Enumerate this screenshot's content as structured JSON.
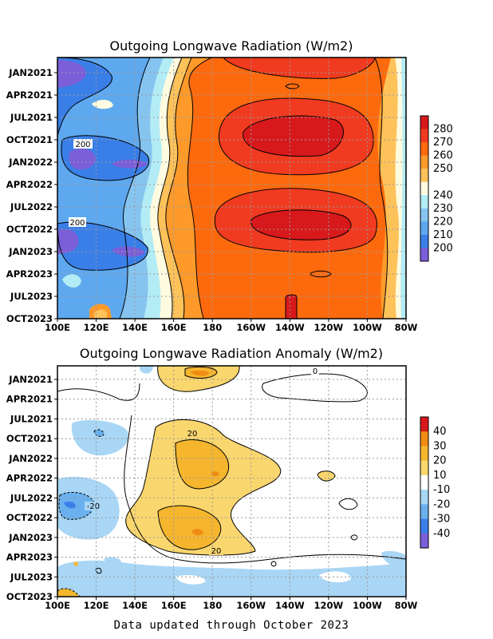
{
  "footer": "Data updated through October 2023",
  "chart_data": [
    {
      "type": "heatmap",
      "title": "Outgoing Longwave Radiation (W/m2)",
      "xlabel": "",
      "ylabel": "",
      "x_ticks": [
        "100E",
        "120E",
        "140E",
        "160E",
        "180",
        "160W",
        "140W",
        "120W",
        "100W",
        "80W"
      ],
      "y_ticks": [
        "JAN2021",
        "APR2021",
        "JUL2021",
        "OCT2021",
        "JAN2022",
        "APR2022",
        "JUL2022",
        "OCT2022",
        "JAN2023",
        "APR2023",
        "JUL2023",
        "OCT2023"
      ],
      "colorbar": {
        "ticks": [
          "280",
          "270",
          "260",
          "250",
          "240",
          "230",
          "220",
          "210",
          "200"
        ],
        "colors": [
          "#d7191c",
          "#f03b20",
          "#fd6a0e",
          "#fd9a2a",
          "#fdc25a",
          "#fffbe0",
          "#b3ecf5",
          "#86c4f0",
          "#5ea8ef",
          "#3a7fe8",
          "#7b5fd8"
        ]
      },
      "contour_labels": [
        "200",
        "200"
      ],
      "grid": true
    },
    {
      "type": "heatmap",
      "title": "Outgoing Longwave Radiation Anomaly (W/m2)",
      "xlabel": "",
      "ylabel": "",
      "x_ticks": [
        "100E",
        "120E",
        "140E",
        "160E",
        "180",
        "160W",
        "140W",
        "120W",
        "100W",
        "80W"
      ],
      "y_ticks": [
        "JAN2021",
        "APR2021",
        "JUL2021",
        "OCT2021",
        "JAN2022",
        "APR2022",
        "JUL2022",
        "OCT2022",
        "JAN2023",
        "APR2023",
        "JUL2023",
        "OCT2023"
      ],
      "colorbar": {
        "ticks": [
          "40",
          "30",
          "20",
          "10",
          "-10",
          "-20",
          "-30",
          "-40"
        ],
        "colors": [
          "#d7191c",
          "#f08c14",
          "#f5b62e",
          "#fad66e",
          "#ffffff",
          "#a9d6f5",
          "#6ab0ee",
          "#3a7fe8",
          "#7b5fd8"
        ]
      },
      "contour_labels": [
        "20",
        "20",
        "-20",
        "0"
      ],
      "grid": true
    }
  ]
}
